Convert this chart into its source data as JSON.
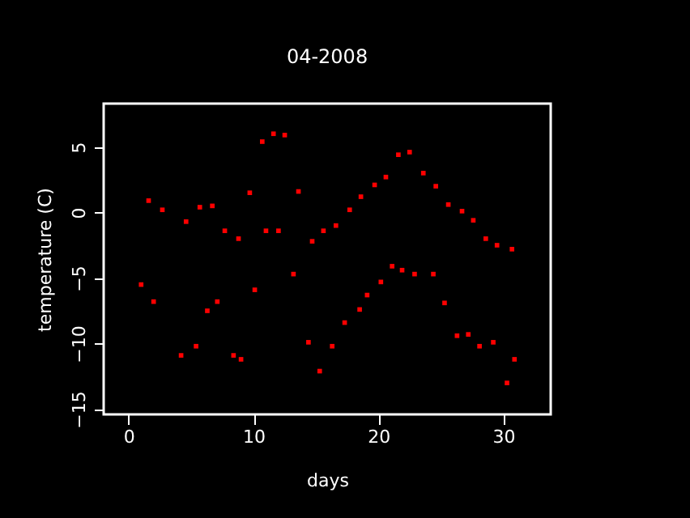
{
  "chart_data": {
    "type": "scatter",
    "title": "04-2008",
    "xlabel": "days",
    "ylabel": "temperature (C)",
    "marker": "square",
    "grid": false,
    "xlim": [
      -2,
      33.8
    ],
    "xticks": [
      0,
      10,
      20,
      30
    ],
    "ylim": [
      -15.4,
      8.3
    ],
    "yticks": [
      -15,
      -10,
      -5,
      0,
      5
    ],
    "series": [
      {
        "color": "#ff0000",
        "x": [
          1.0,
          1.6,
          2.0,
          2.7,
          4.2,
          4.6,
          5.4,
          5.7,
          6.3,
          6.7,
          7.1,
          7.7,
          8.4,
          8.8,
          9.0,
          9.7,
          10.1,
          10.7,
          11.0,
          11.6,
          12.0,
          12.5,
          13.2,
          13.6,
          14.4,
          14.7,
          15.3,
          15.6,
          16.3,
          16.6,
          17.3,
          17.7,
          18.5,
          18.6,
          19.1,
          19.7,
          20.2,
          20.6,
          21.1,
          21.6,
          21.9,
          22.5,
          22.9,
          23.6,
          24.4,
          24.6,
          25.3,
          25.6,
          26.3,
          26.7,
          27.2,
          27.6,
          28.1,
          28.6,
          29.2,
          29.5,
          30.3,
          30.7,
          30.9
        ],
        "values": [
          -5.5,
          0.9,
          -6.8,
          0.2,
          -10.9,
          -0.7,
          -10.2,
          0.4,
          -7.5,
          0.5,
          -6.8,
          -1.4,
          -10.9,
          -2,
          -11.2,
          1.5,
          -5.9,
          5.4,
          -1.4,
          6.0,
          -1.4,
          5.9,
          -4.7,
          1.6,
          -9.9,
          -2.2,
          -12.1,
          -1.4,
          -10.2,
          -1,
          -8.4,
          0.2,
          -7.4,
          1.2,
          -6.3,
          2.1,
          -5.3,
          2.7,
          -4.1,
          4.4,
          -4.4,
          4.6,
          -4.7,
          3.0,
          -4.7,
          2.0,
          -6.9,
          0.6,
          -9.4,
          0.1,
          -9.3,
          -0.6,
          -10.2,
          -2,
          -9.9,
          -2.5,
          -13,
          -2.8,
          -11.2
        ]
      }
    ]
  }
}
